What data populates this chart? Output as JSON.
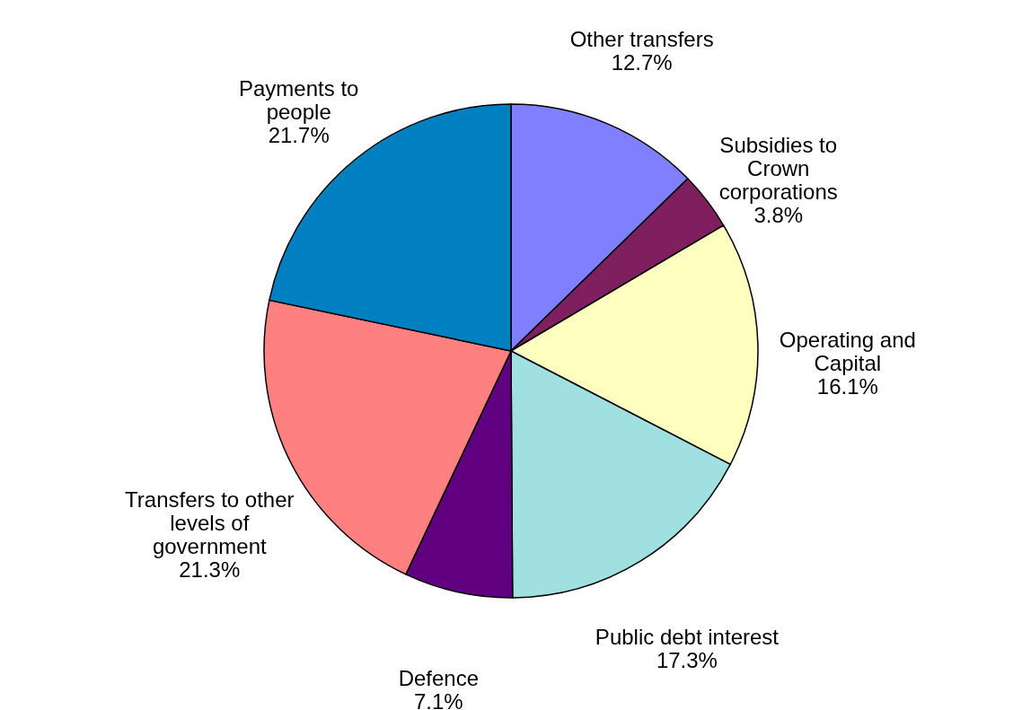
{
  "chart_data": {
    "type": "pie",
    "categories": [
      "Other transfers",
      "Subsidies to\nCrown\ncorporations",
      "Operating and\nCapital",
      "Public debt interest",
      "Defence",
      "Transfers to other\nlevels of\ngovernment",
      "Payments to\npeople"
    ],
    "values": [
      12.7,
      3.8,
      16.1,
      17.3,
      7.1,
      21.3,
      21.7
    ],
    "value_labels": [
      "12.7%",
      "3.8%",
      "16.1%",
      "17.3%",
      "7.1%",
      "21.3%",
      "21.7%"
    ],
    "colors": [
      "#8080ff",
      "#7f1f5f",
      "#ffffc0",
      "#a0e0e0",
      "#600080",
      "#ff8080",
      "#0080c0"
    ],
    "legend": false
  }
}
